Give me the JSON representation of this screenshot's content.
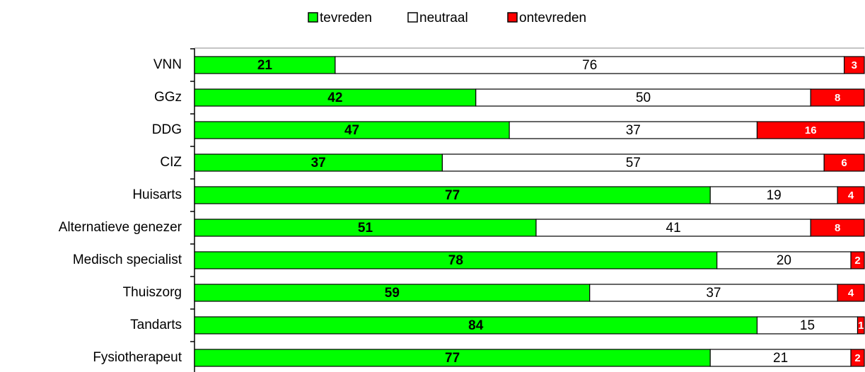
{
  "chart_data": {
    "type": "stacked_barh",
    "categories": [
      "VNN",
      "GGz",
      "DDG",
      "CIZ",
      "Huisarts",
      "Alternatieve genezer",
      "Medisch specialist",
      "Thuiszorg",
      "Tandarts",
      "Fysiotherapeut"
    ],
    "series": [
      {
        "name": "tevreden",
        "color": "#00ff00",
        "values": [
          21,
          42,
          47,
          37,
          77,
          51,
          78,
          59,
          84,
          77
        ]
      },
      {
        "name": "neutraal",
        "color": "#ffffff",
        "values": [
          76,
          50,
          37,
          57,
          19,
          41,
          20,
          37,
          15,
          21
        ]
      },
      {
        "name": "ontevreden",
        "color": "#ff0000",
        "values": [
          3,
          8,
          16,
          6,
          4,
          8,
          2,
          4,
          1,
          2
        ]
      }
    ],
    "xlim": [
      0,
      100
    ],
    "legend": "top"
  }
}
